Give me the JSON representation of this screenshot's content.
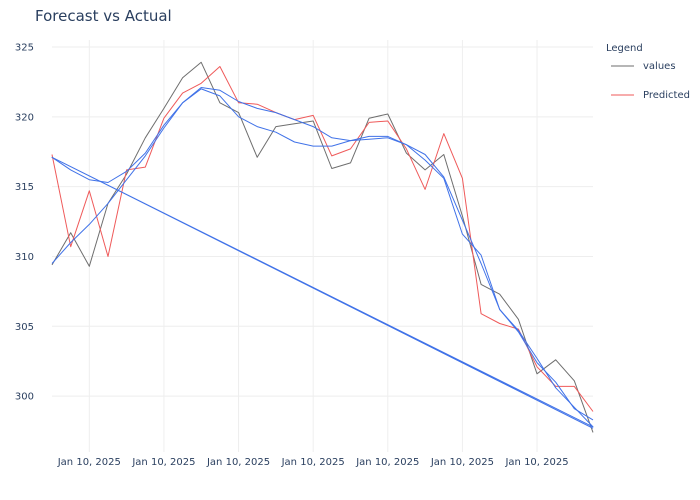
{
  "chart_data": {
    "type": "line",
    "title": "Forecast vs Actual",
    "xlabel": "",
    "ylabel": "",
    "x_tick_labels": [
      "Jan 10, 2025",
      "Jan 10, 2025",
      "Jan 10, 2025",
      "Jan 10, 2025",
      "Jan 10, 2025",
      "Jan 10, 2025",
      "Jan 10, 2025"
    ],
    "x_tick_positions": [
      2,
      6,
      10,
      14,
      18,
      22,
      26
    ],
    "xlim": [
      0,
      29
    ],
    "ylim": [
      296,
      325.5
    ],
    "y_ticks": [
      300,
      305,
      310,
      315,
      320,
      325
    ],
    "grid": true,
    "legend": {
      "title": "Legend",
      "placement": "top-right"
    },
    "series": [
      {
        "name": "values",
        "color": "#6e6e6e",
        "x": [
          0,
          1,
          2,
          3,
          4,
          5,
          6,
          7,
          8,
          9,
          10,
          11,
          12,
          13,
          14,
          15,
          16,
          17,
          18,
          19,
          20,
          21,
          22,
          23,
          24,
          25,
          26,
          27,
          28,
          29
        ],
        "values": [
          309.4,
          311.7,
          309.3,
          313.8,
          315.9,
          318.5,
          320.6,
          322.8,
          323.9,
          321.0,
          320.3,
          317.1,
          319.3,
          319.5,
          319.7,
          316.3,
          316.7,
          319.9,
          320.2,
          317.4,
          316.2,
          317.3,
          312.9,
          308.0,
          307.3,
          305.5,
          301.6,
          302.6,
          301.1,
          297.4
        ]
      },
      {
        "name": "Predicted",
        "color": "#ef5a5a",
        "x": [
          0,
          1,
          2,
          3,
          4,
          5,
          6,
          7,
          8,
          9,
          10,
          11,
          12,
          13,
          14,
          15,
          16,
          17,
          18,
          19,
          20,
          21,
          22,
          23,
          24,
          25,
          26,
          27,
          28,
          29
        ],
        "values": [
          317.3,
          310.7,
          314.7,
          310.0,
          316.2,
          316.4,
          319.9,
          321.7,
          322.4,
          323.6,
          321.0,
          320.9,
          320.3,
          319.8,
          320.1,
          317.2,
          317.7,
          319.6,
          319.7,
          317.7,
          314.8,
          318.8,
          315.6,
          305.9,
          305.2,
          304.8,
          302.1,
          300.7,
          300.7,
          298.9
        ]
      },
      {
        "name": "",
        "color": "#4072e8",
        "x": [
          0,
          1,
          2,
          3,
          4,
          5,
          6,
          7,
          8,
          9,
          10,
          11,
          12,
          13,
          14,
          15,
          16,
          17,
          18,
          19,
          20,
          21,
          22,
          23,
          24,
          25,
          26,
          27,
          28,
          29,
          0,
          29
        ],
        "values": [
          309.5,
          311.0,
          312.3,
          313.8,
          315.5,
          317.2,
          319.2,
          321.0,
          322.0,
          321.5,
          320.0,
          319.3,
          318.9,
          318.2,
          317.9,
          317.9,
          318.3,
          318.6,
          318.6,
          318.0,
          316.9,
          315.6,
          311.6,
          310.1,
          306.2,
          304.7,
          302.7,
          300.6,
          299.2,
          297.8,
          317.1,
          297.7
        ]
      },
      {
        "name": "",
        "color": "#4072e8",
        "x": [
          0,
          1,
          2,
          3,
          4,
          5,
          6,
          7,
          8,
          9,
          10,
          11,
          12,
          13,
          14,
          15,
          16,
          17,
          18,
          19,
          20,
          21,
          22,
          23,
          24,
          25,
          26,
          27,
          28,
          29
        ],
        "values": [
          317.1,
          316.2,
          315.5,
          315.3,
          316.1,
          317.4,
          319.4,
          321.0,
          322.1,
          321.9,
          321.1,
          320.6,
          320.3,
          319.8,
          319.3,
          318.5,
          318.3,
          318.4,
          318.5,
          318.0,
          317.3,
          315.7,
          312.6,
          309.5,
          306.2,
          304.6,
          302.4,
          301.0,
          299.1,
          298.3
        ]
      }
    ]
  }
}
